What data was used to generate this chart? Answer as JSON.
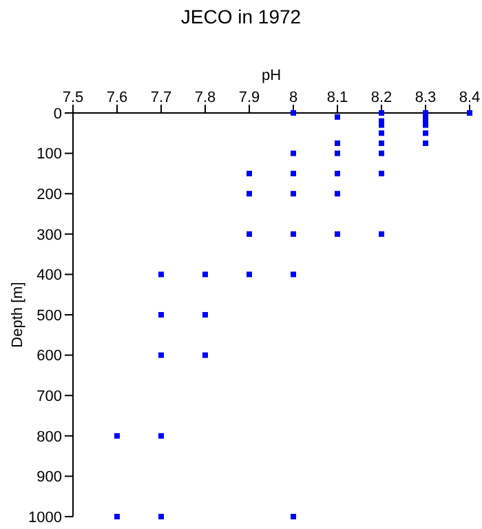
{
  "chart_data": {
    "type": "scatter",
    "title": "JECO in 1972",
    "xlabel": "pH",
    "ylabel": "Depth [m]",
    "x": [
      8.0,
      8.0,
      8.0,
      8.0,
      8.0,
      8.0,
      8.0,
      7.9,
      7.9,
      7.9,
      7.9,
      8.1,
      8.1,
      8.1,
      8.1,
      8.1,
      8.1,
      8.2,
      8.2,
      8.2,
      8.2,
      8.2,
      8.2,
      8.2,
      8.2,
      8.3,
      8.3,
      8.3,
      8.3,
      8.3,
      8.3,
      8.4,
      7.7,
      7.7,
      7.7,
      7.8,
      7.8,
      7.8,
      7.6,
      7.6,
      7.7,
      7.7
    ],
    "values": [
      0,
      100,
      150,
      200,
      300,
      400,
      1000,
      150,
      200,
      300,
      400,
      10,
      75,
      100,
      150,
      200,
      300,
      0,
      20,
      30,
      50,
      75,
      100,
      150,
      300,
      0,
      10,
      20,
      30,
      50,
      75,
      0,
      400,
      500,
      600,
      400,
      500,
      600,
      800,
      1000,
      800,
      1000
    ],
    "color": "#0000ff",
    "marker": "square",
    "xlim": [
      7.5,
      8.4
    ],
    "xticks": [
      7.5,
      7.6,
      7.7,
      7.8,
      7.9,
      8,
      8.1,
      8.2,
      8.3,
      8.4
    ],
    "ylim": [
      1000,
      0
    ],
    "yticks": [
      0,
      100,
      200,
      300,
      400,
      500,
      600,
      700,
      800,
      900,
      1000
    ],
    "grid": false,
    "legend": false
  }
}
